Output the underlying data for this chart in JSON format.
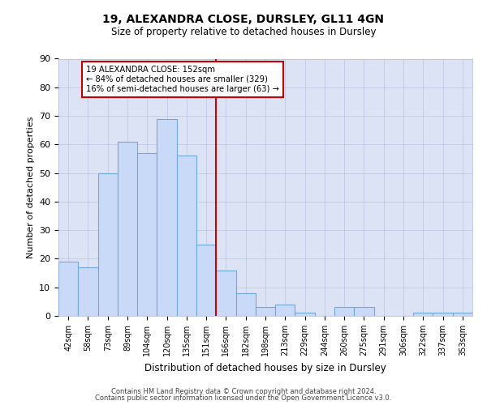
{
  "title1": "19, ALEXANDRA CLOSE, DURSLEY, GL11 4GN",
  "title2": "Size of property relative to detached houses in Dursley",
  "xlabel": "Distribution of detached houses by size in Dursley",
  "ylabel": "Number of detached properties",
  "categories": [
    "42sqm",
    "58sqm",
    "73sqm",
    "89sqm",
    "104sqm",
    "120sqm",
    "135sqm",
    "151sqm",
    "166sqm",
    "182sqm",
    "198sqm",
    "213sqm",
    "229sqm",
    "244sqm",
    "260sqm",
    "275sqm",
    "291sqm",
    "306sqm",
    "322sqm",
    "337sqm",
    "353sqm"
  ],
  "values": [
    19,
    17,
    50,
    61,
    57,
    69,
    56,
    25,
    16,
    8,
    3,
    4,
    1,
    0,
    3,
    3,
    0,
    0,
    1,
    1,
    1
  ],
  "bar_color": "#c9daf8",
  "bar_edge_color": "#6fa8dc",
  "highlight_line_color": "#cc0000",
  "annotation_text": "19 ALEXANDRA CLOSE: 152sqm\n← 84% of detached houses are smaller (329)\n16% of semi-detached houses are larger (63) →",
  "annotation_box_color": "#cc0000",
  "ylim": [
    0,
    90
  ],
  "yticks": [
    0,
    10,
    20,
    30,
    40,
    50,
    60,
    70,
    80,
    90
  ],
  "grid_color": "#b0b8d8",
  "background_color": "#dce3f5",
  "footer1": "Contains HM Land Registry data © Crown copyright and database right 2024.",
  "footer2": "Contains public sector information licensed under the Open Government Licence v3.0."
}
